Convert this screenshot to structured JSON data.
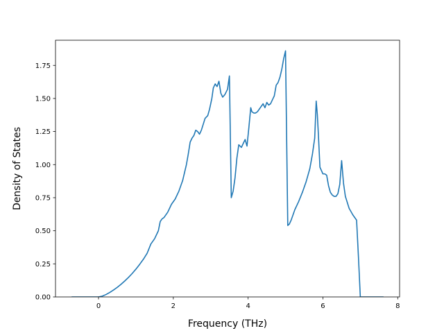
{
  "chart_data": {
    "type": "line",
    "title": "",
    "xlabel": "Frequency (THz)",
    "ylabel": "Density of States",
    "xlim": [
      -1.15,
      8.05
    ],
    "ylim": [
      0.0,
      1.94
    ],
    "xticks": [
      0,
      2,
      4,
      6,
      8
    ],
    "xtick_labels": [
      "0",
      "2",
      "4",
      "6",
      "8"
    ],
    "yticks": [
      0.0,
      0.25,
      0.5,
      0.75,
      1.0,
      1.25,
      1.5,
      1.75
    ],
    "ytick_labels": [
      "0.00",
      "0.25",
      "0.50",
      "0.75",
      "1.00",
      "1.25",
      "1.50",
      "1.75"
    ],
    "grid": false,
    "series": [
      {
        "color": "#1f77b4",
        "x": [
          -0.72,
          -0.4,
          0.0,
          0.1,
          0.2,
          0.3,
          0.4,
          0.5,
          0.6,
          0.7,
          0.8,
          0.9,
          1.0,
          1.1,
          1.2,
          1.3,
          1.4,
          1.5,
          1.6,
          1.65,
          1.7,
          1.75,
          1.85,
          1.95,
          2.05,
          2.15,
          2.25,
          2.35,
          2.4,
          2.45,
          2.5,
          2.55,
          2.6,
          2.65,
          2.7,
          2.75,
          2.85,
          2.92,
          2.97,
          3.03,
          3.07,
          3.12,
          3.17,
          3.22,
          3.27,
          3.32,
          3.38,
          3.45,
          3.5,
          3.55,
          3.6,
          3.65,
          3.7,
          3.75,
          3.82,
          3.87,
          3.92,
          3.97,
          4.02,
          4.07,
          4.1,
          4.15,
          4.2,
          4.25,
          4.3,
          4.35,
          4.4,
          4.45,
          4.5,
          4.55,
          4.6,
          4.65,
          4.7,
          4.75,
          4.8,
          4.85,
          4.9,
          4.95,
          5.0,
          5.03,
          5.06,
          5.1,
          5.15,
          5.25,
          5.35,
          5.45,
          5.55,
          5.65,
          5.72,
          5.78,
          5.82,
          5.85,
          5.88,
          5.92,
          6.0,
          6.05,
          6.1,
          6.15,
          6.2,
          6.25,
          6.3,
          6.35,
          6.4,
          6.45,
          6.5,
          6.55,
          6.6,
          6.7,
          6.8,
          6.9,
          6.95,
          7.0,
          7.62
        ],
        "y": [
          0.0,
          0.0,
          0.0,
          0.006,
          0.018,
          0.034,
          0.052,
          0.072,
          0.095,
          0.12,
          0.147,
          0.177,
          0.21,
          0.246,
          0.285,
          0.33,
          0.4,
          0.44,
          0.5,
          0.57,
          0.59,
          0.6,
          0.64,
          0.7,
          0.74,
          0.8,
          0.88,
          1.0,
          1.08,
          1.17,
          1.2,
          1.22,
          1.26,
          1.25,
          1.23,
          1.26,
          1.35,
          1.37,
          1.42,
          1.5,
          1.58,
          1.61,
          1.59,
          1.63,
          1.54,
          1.51,
          1.53,
          1.57,
          1.67,
          0.75,
          0.8,
          0.9,
          1.05,
          1.15,
          1.13,
          1.16,
          1.19,
          1.14,
          1.28,
          1.43,
          1.4,
          1.39,
          1.39,
          1.4,
          1.42,
          1.44,
          1.46,
          1.43,
          1.47,
          1.45,
          1.46,
          1.49,
          1.52,
          1.6,
          1.62,
          1.66,
          1.72,
          1.8,
          1.86,
          1.2,
          0.54,
          0.55,
          0.58,
          0.66,
          0.72,
          0.79,
          0.87,
          0.97,
          1.08,
          1.2,
          1.48,
          1.38,
          1.22,
          0.98,
          0.93,
          0.93,
          0.92,
          0.84,
          0.79,
          0.77,
          0.76,
          0.76,
          0.78,
          0.85,
          1.03,
          0.86,
          0.76,
          0.67,
          0.62,
          0.58,
          0.3,
          0.0,
          0.0
        ]
      }
    ]
  }
}
